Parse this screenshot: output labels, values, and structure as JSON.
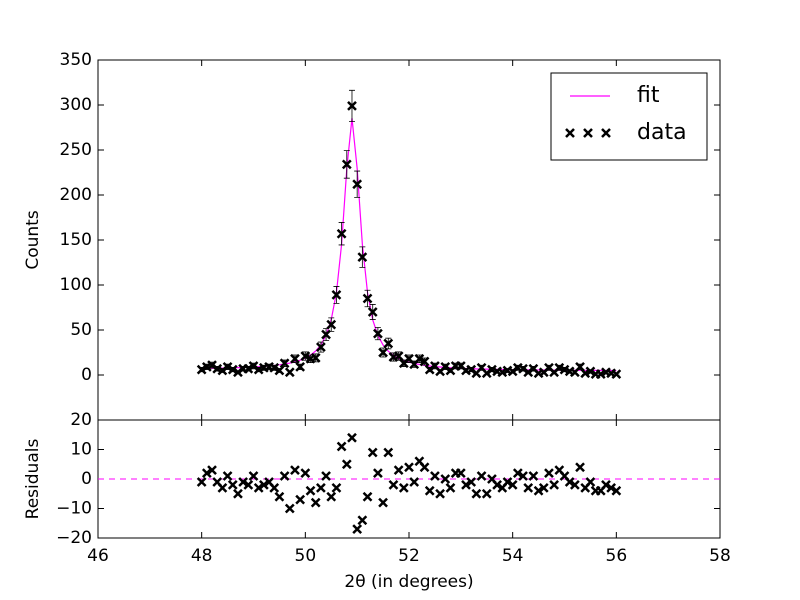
{
  "chart_data": [
    {
      "type": "line",
      "ylabel": "Counts",
      "ylim": [
        -50,
        350
      ],
      "yticks": [
        0,
        50,
        100,
        150,
        200,
        250,
        300,
        350
      ],
      "legend": "upper right",
      "x": [
        48.0,
        48.1,
        48.2,
        48.3,
        48.4,
        48.5,
        48.6,
        48.7,
        48.8,
        48.9,
        49.0,
        49.1,
        49.2,
        49.3,
        49.4,
        49.5,
        49.6,
        49.7,
        49.8,
        49.9,
        50.0,
        50.1,
        50.2,
        50.3,
        50.4,
        50.5,
        50.6,
        50.7,
        50.8,
        50.9,
        51.0,
        51.1,
        51.2,
        51.3,
        51.4,
        51.5,
        51.6,
        51.7,
        51.8,
        51.9,
        52.0,
        52.1,
        52.2,
        52.3,
        52.4,
        52.5,
        52.6,
        52.7,
        52.8,
        52.9,
        53.0,
        53.1,
        53.2,
        53.3,
        53.4,
        53.5,
        53.6,
        53.7,
        53.8,
        53.9,
        54.0,
        54.1,
        54.2,
        54.3,
        54.4,
        54.5,
        54.6,
        54.7,
        54.8,
        54.9,
        55.0,
        55.1,
        55.2,
        55.3,
        55.4,
        55.5,
        55.6,
        55.7,
        55.8,
        55.9,
        56.0
      ],
      "series": [
        {
          "name": "fit",
          "kind": "line",
          "color": "#ff00ff",
          "values": [
            7.3,
            7.4,
            7.5,
            7.5,
            7.7,
            7.8,
            8.0,
            8.2,
            8.3,
            8.6,
            8.9,
            9.2,
            9.6,
            10.0,
            10.6,
            11.3,
            12.2,
            13.3,
            14.6,
            16.4,
            18.7,
            22.1,
            26.7,
            33.5,
            44.1,
            61.5,
            91.5,
            145.5,
            229.4,
            285.4,
            229.4,
            145.4,
            91.4,
            61.3,
            43.9,
            33.3,
            26.4,
            21.8,
            18.3,
            16.0,
            14.2,
            12.8,
            11.7,
            10.7,
            10.0,
            9.4,
            8.9,
            8.5,
            8.1,
            7.8,
            7.5,
            7.3,
            7.1,
            6.8,
            6.7,
            6.5,
            6.4,
            6.3,
            6.1,
            6.0,
            5.9,
            5.8,
            5.8,
            5.7,
            5.7,
            5.6,
            5.6,
            5.5,
            5.5,
            5.4,
            5.4,
            5.3,
            5.3,
            5.3,
            5.2,
            5.2,
            5.1,
            5.1,
            5.0,
            5.0,
            4.9
          ]
        },
        {
          "name": "data",
          "kind": "scatter",
          "color": "#000000",
          "values": [
            6,
            9,
            11,
            7,
            5,
            9,
            6,
            3,
            7,
            7,
            10,
            6,
            8,
            9,
            8,
            5,
            13,
            3,
            18,
            9,
            21,
            18,
            19,
            31,
            45,
            56,
            89,
            157,
            234,
            299,
            212,
            131,
            85,
            70,
            46,
            25,
            35,
            20,
            21,
            13,
            18,
            12,
            18,
            15,
            6,
            10,
            4,
            9,
            5,
            10,
            10,
            5,
            6,
            2,
            8,
            2,
            6,
            4,
            3,
            5,
            4,
            8,
            7,
            3,
            7,
            2,
            3,
            8,
            3,
            8,
            6,
            4,
            3,
            9,
            2,
            4,
            1,
            1,
            3,
            2,
            1
          ],
          "errors": [
            2.4,
            3,
            3.3,
            2.6,
            2.2,
            3,
            2.4,
            1.7,
            2.6,
            2.6,
            3.2,
            2.4,
            2.8,
            3,
            2.8,
            2.2,
            3.6,
            1.7,
            4.2,
            3,
            4.6,
            4.2,
            4.4,
            5.6,
            6.7,
            7.5,
            9.4,
            12.5,
            15.3,
            17.3,
            14.6,
            11.4,
            9.2,
            8.4,
            6.8,
            5,
            5.9,
            4.5,
            4.6,
            3.6,
            4.2,
            3.5,
            4.2,
            3.9,
            2.4,
            3.2,
            2,
            3,
            2.2,
            3.2,
            3.2,
            2.2,
            2.4,
            1.4,
            2.8,
            1.4,
            2.4,
            2,
            1.7,
            2.2,
            2,
            2.8,
            2.6,
            1.7,
            2.6,
            1.4,
            1.7,
            2.8,
            1.7,
            2.8,
            2.4,
            2,
            1.7,
            3,
            1.4,
            2,
            1,
            1,
            1.7,
            1.4,
            1
          ]
        }
      ]
    },
    {
      "type": "residual",
      "ylabel": "Residuals",
      "xlabel": "2θ (in degrees)",
      "xlim": [
        46,
        58
      ],
      "xticks": [
        46,
        48,
        50,
        52,
        54,
        56,
        58
      ],
      "ylim": [
        -20,
        20
      ],
      "yticks": [
        {
          "value": -20,
          "label": "−20"
        },
        {
          "value": -10,
          "label": "−10"
        },
        0,
        10,
        20
      ],
      "color": "#000000",
      "reference_line": {
        "y": 0,
        "color": "#ff00ff"
      },
      "values": [
        -1,
        2,
        3,
        -1,
        -3,
        1,
        -2,
        -5,
        -1,
        -2,
        1,
        -3,
        -2,
        -1,
        -3,
        -6,
        1,
        -10,
        3,
        -7,
        2,
        -4,
        -8,
        -3,
        1,
        -6,
        -3,
        11,
        5,
        14,
        -17,
        -14,
        -6,
        9,
        2,
        -8,
        9,
        -2,
        3,
        -3,
        4,
        -1,
        6,
        4,
        -4,
        1,
        -5,
        0,
        -3,
        2,
        2,
        -2,
        -1,
        -5,
        1,
        -5,
        0,
        -2,
        -3,
        -1,
        -2,
        2,
        1,
        -3,
        1,
        -4,
        -3,
        2,
        -2,
        3,
        1,
        -1,
        -2,
        4,
        -3,
        -1,
        -4,
        -4,
        -2,
        -3,
        -4
      ]
    }
  ]
}
